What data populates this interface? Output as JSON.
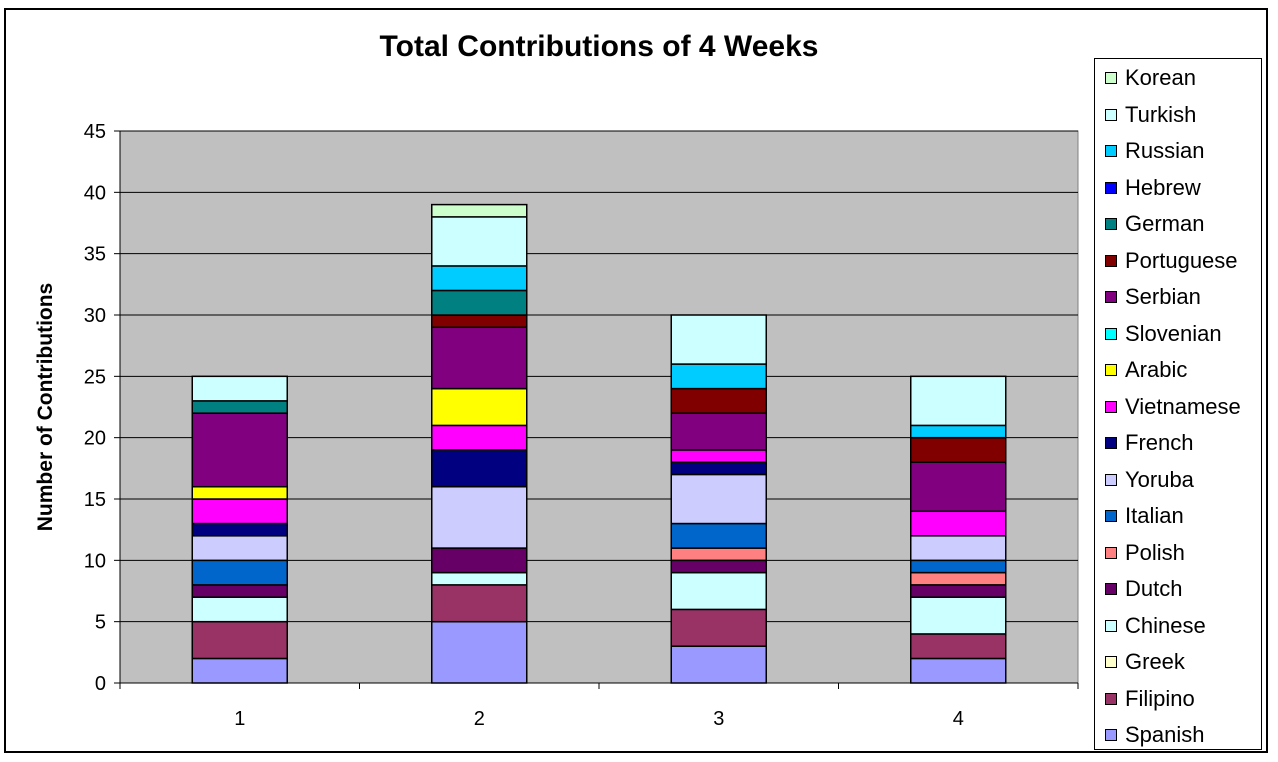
{
  "chart_data": {
    "type": "bar",
    "stacked": true,
    "title": "Total Contributions of 4 Weeks",
    "xlabel": "",
    "ylabel": "Number of Contributions",
    "ylim": [
      0,
      45
    ],
    "yticks": [
      "0",
      "5",
      "10",
      "15",
      "20",
      "25",
      "30",
      "35",
      "40",
      "45"
    ],
    "categories": [
      "1",
      "2",
      "3",
      "4"
    ],
    "grid": true,
    "legend_position": "right",
    "series": [
      {
        "name": "Spanish",
        "color": "#9999FF",
        "values": [
          2,
          5,
          3,
          2
        ]
      },
      {
        "name": "Filipino",
        "color": "#993366",
        "values": [
          3,
          3,
          3,
          2
        ]
      },
      {
        "name": "Greek",
        "color": "#FFFFCC",
        "values": [
          0,
          0,
          0,
          0
        ]
      },
      {
        "name": "Chinese",
        "color": "#CCFFFF",
        "values": [
          2,
          1,
          3,
          3
        ]
      },
      {
        "name": "Dutch",
        "color": "#660066",
        "values": [
          1,
          2,
          1,
          1
        ]
      },
      {
        "name": "Polish",
        "color": "#FF8080",
        "values": [
          0,
          0,
          1,
          1
        ]
      },
      {
        "name": "Italian",
        "color": "#0066CC",
        "values": [
          2,
          0,
          2,
          1
        ]
      },
      {
        "name": "Yoruba",
        "color": "#CCCCFF",
        "values": [
          2,
          5,
          4,
          2
        ]
      },
      {
        "name": "French",
        "color": "#000080",
        "values": [
          1,
          3,
          1,
          0
        ]
      },
      {
        "name": "Vietnamese",
        "color": "#FF00FF",
        "values": [
          2,
          2,
          1,
          2
        ]
      },
      {
        "name": "Arabic",
        "color": "#FFFF00",
        "values": [
          1,
          3,
          0,
          0
        ]
      },
      {
        "name": "Slovenian",
        "color": "#00FFFF",
        "values": [
          0,
          0,
          0,
          0
        ]
      },
      {
        "name": "Serbian",
        "color": "#800080",
        "values": [
          6,
          5,
          3,
          4
        ]
      },
      {
        "name": "Portuguese",
        "color": "#800000",
        "values": [
          0,
          1,
          2,
          2
        ]
      },
      {
        "name": "German",
        "color": "#008080",
        "values": [
          1,
          2,
          0,
          0
        ]
      },
      {
        "name": "Hebrew",
        "color": "#0000FF",
        "values": [
          0,
          0,
          0,
          0
        ]
      },
      {
        "name": "Russian",
        "color": "#00CCFF",
        "values": [
          0,
          2,
          2,
          1
        ]
      },
      {
        "name": "Turkish",
        "color": "#CCFFFF",
        "values": [
          2,
          4,
          4,
          4
        ]
      },
      {
        "name": "Korean",
        "color": "#CCFFCC",
        "values": [
          0,
          1,
          0,
          0
        ]
      }
    ]
  },
  "style": {
    "plot_background": "#C0C0C0",
    "gridline_color": "#000000"
  }
}
